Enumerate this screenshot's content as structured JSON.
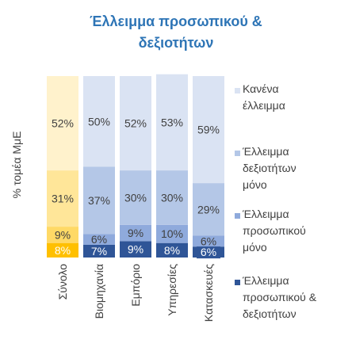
{
  "chart_data": {
    "type": "bar",
    "stacked": true,
    "normalized": true,
    "title": "Έλλειμμα προσωπικού & δεξιοτήτων",
    "ylabel": "% τομέα ΜμΕ",
    "xlabel": "",
    "ylim": [
      0,
      100
    ],
    "categories": [
      "Σύνολο",
      "Βιομηχανία",
      "Εμπόριο",
      "Υπηρεσίες",
      "Κατασκευές"
    ],
    "series": [
      {
        "name": "Έλλειμμα προσωπικού & δεξιοτήτων",
        "values": [
          8,
          7,
          9,
          8,
          6
        ]
      },
      {
        "name": "Έλλειμμα προσωπικού μόνο",
        "values": [
          9,
          6,
          9,
          10,
          6
        ]
      },
      {
        "name": "Έλλειμμα δεξιοτήτων μόνο",
        "values": [
          31,
          37,
          30,
          30,
          29
        ]
      },
      {
        "name": "Κανένα έλλειμμα",
        "values": [
          52,
          50,
          52,
          53,
          59
        ]
      }
    ],
    "data_labels": [
      [
        "8%",
        "7%",
        "9%",
        "8%",
        "6%"
      ],
      [
        "9%",
        "6%",
        "9%",
        "10%",
        "6%"
      ],
      [
        "31%",
        "37%",
        "30%",
        "30%",
        "29%"
      ],
      [
        "52%",
        "50%",
        "52%",
        "53%",
        "59%"
      ]
    ],
    "colors": {
      "total": [
        "#ffc000",
        "#ffd966",
        "#ffe699",
        "#fff2cc"
      ],
      "sectors": [
        "#2f5597",
        "#8faadc",
        "#b4c7e7",
        "#dae3f3"
      ]
    },
    "grid": false,
    "legend_position": "right"
  },
  "legend": [
    {
      "lines": [
        "Κανένα",
        "έλλειμμα"
      ],
      "color": "#dae3f3"
    },
    {
      "lines": [
        "Έλλειμμα",
        "δεξιοτήτων",
        "μόνο"
      ],
      "color": "#b4c7e7"
    },
    {
      "lines": [
        "Έλλειμμα",
        "προσωπικού",
        "μόνο"
      ],
      "color": "#8faadc"
    },
    {
      "lines": [
        "Έλλειμμα",
        "προσωπικού &",
        "δεξιοτήτων"
      ],
      "color": "#2f5597"
    }
  ],
  "title_lines": [
    "Έλλειμμα προσωπικού &",
    "δεξιοτήτων"
  ]
}
